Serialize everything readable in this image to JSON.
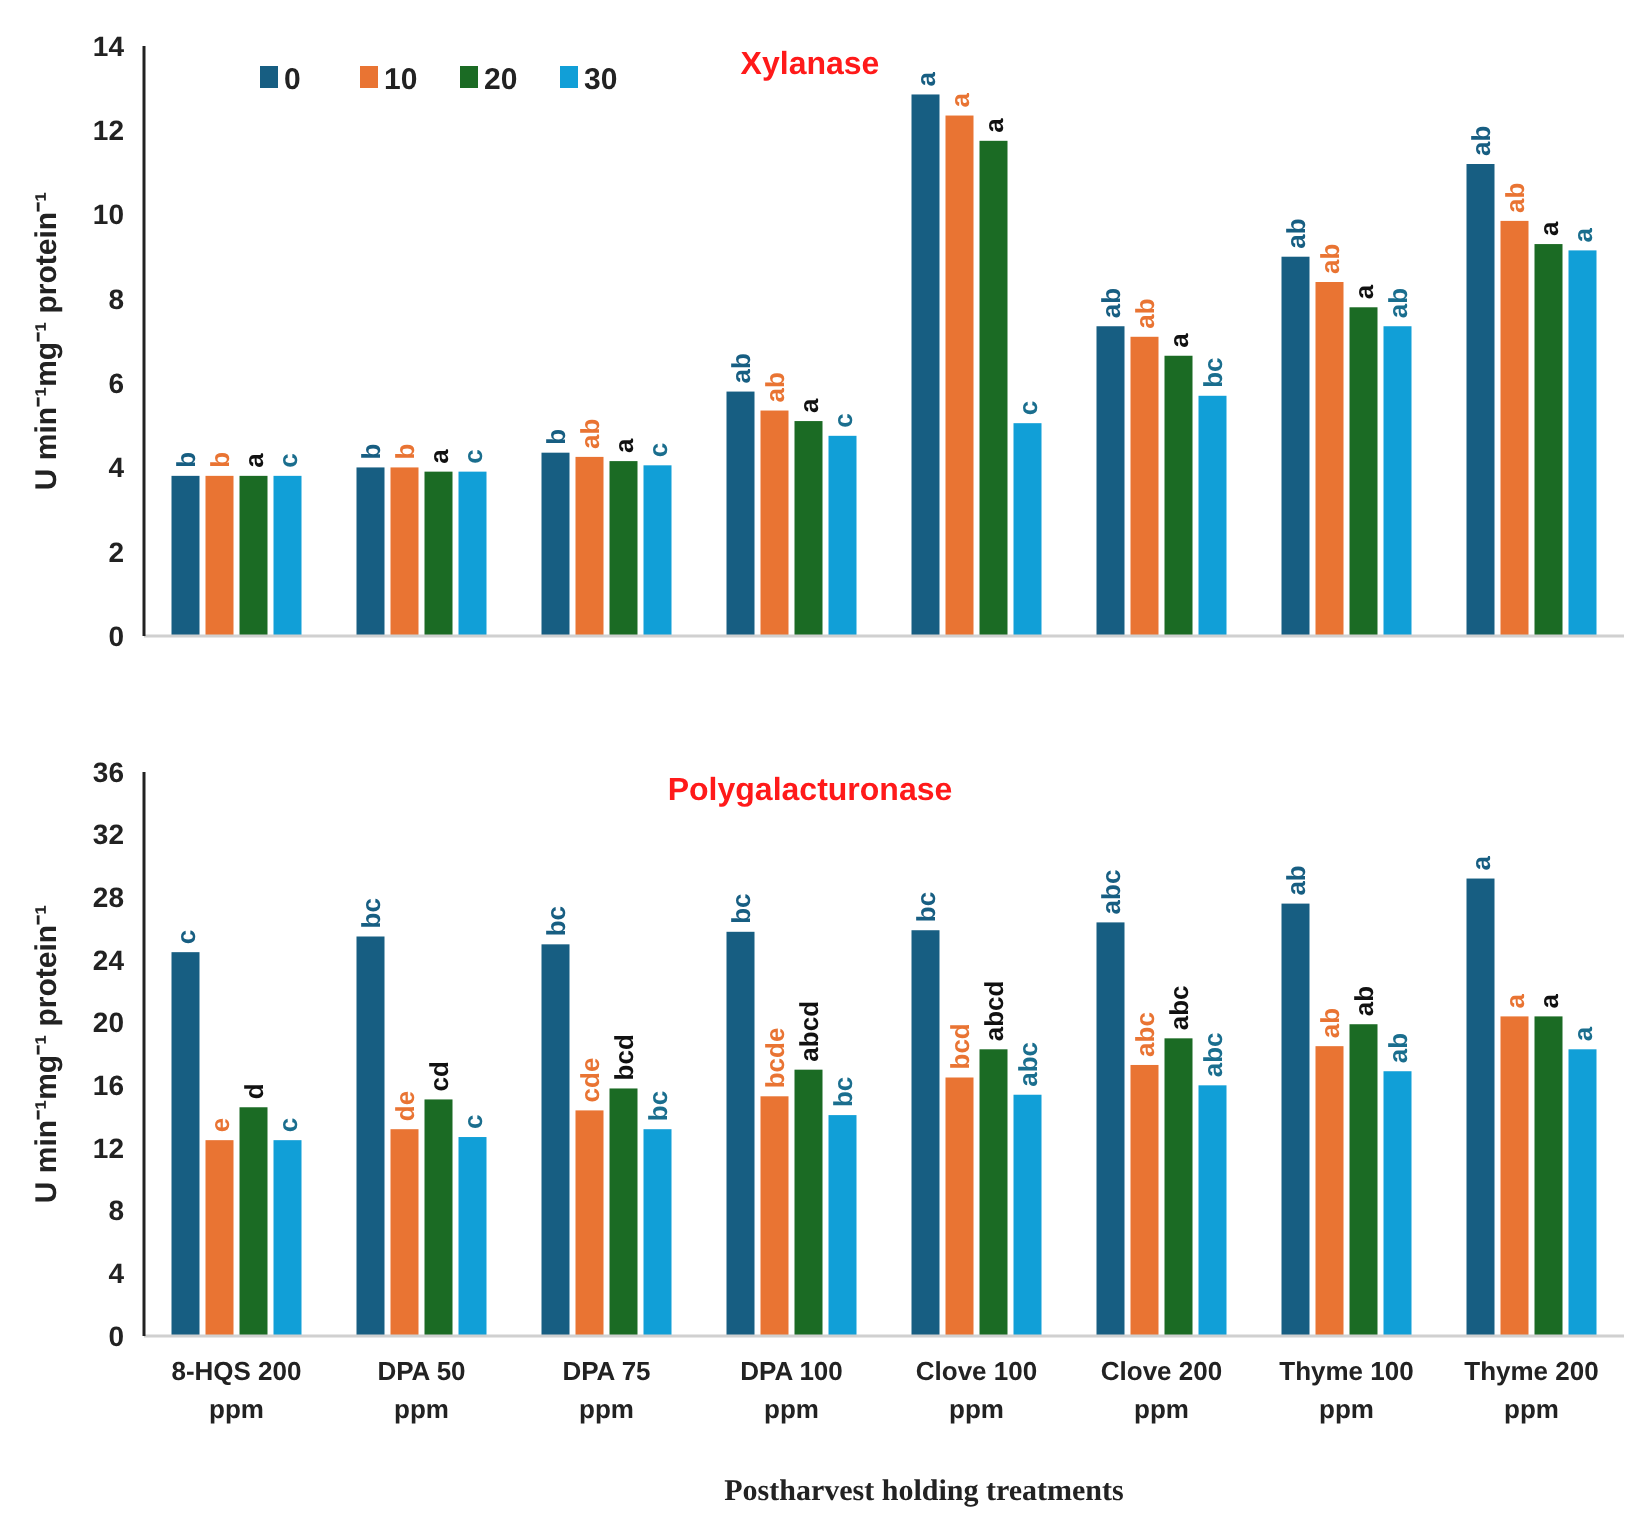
{
  "chart_data": [
    {
      "type": "bar",
      "title": "Xylanase",
      "ylabel": "U min⁻¹mg⁻¹ protein⁻¹",
      "categories": [
        null,
        null,
        null,
        null,
        null,
        null,
        null,
        null
      ],
      "tick_labels": "y",
      "legend": "top left",
      "ylim": [
        0,
        14
      ],
      "yticks": [
        0,
        2,
        4,
        6,
        8,
        10,
        12,
        14
      ],
      "series": [
        {
          "name": "0",
          "color": "#175e82",
          "values": [
            3.8,
            4.0,
            4.35,
            5.8,
            12.85,
            7.35,
            9.0,
            11.2
          ],
          "value_labels": [
            "b",
            "b",
            "b",
            "ab",
            "a",
            "ab",
            "ab",
            "ab"
          ]
        },
        {
          "name": "10",
          "color": "#e97433",
          "values": [
            3.8,
            4.0,
            4.25,
            5.35,
            12.35,
            7.1,
            8.4,
            9.85
          ],
          "value_labels": [
            "b",
            "b",
            "ab",
            "ab",
            "a",
            "ab",
            "ab",
            "ab"
          ]
        },
        {
          "name": "20",
          "color": "#1b6b24",
          "values": [
            3.8,
            3.9,
            4.15,
            5.1,
            11.75,
            6.65,
            7.8,
            9.3
          ],
          "value_labels": [
            "a",
            "a",
            "a",
            "a",
            "a",
            "a",
            "a",
            "a"
          ]
        },
        {
          "name": "30",
          "color": "#119fd7",
          "values": [
            3.8,
            3.9,
            4.05,
            4.75,
            5.05,
            5.7,
            7.35,
            9.15
          ],
          "value_labels": [
            "c",
            "c",
            "c",
            "c",
            "c",
            "bc",
            "ab",
            "a"
          ]
        }
      ]
    },
    {
      "type": "bar",
      "title": "Polygalacturonase",
      "ylabel": "U min⁻¹mg⁻¹ protein⁻¹",
      "xlabel": "Postharvest holding treatments",
      "categories": [
        "8-HQS 200 ppm",
        "DPA 50 ppm",
        "DPA 75 ppm",
        "DPA 100 ppm",
        "Clove 100 ppm",
        "Clove 200 ppm",
        "Thyme 100 ppm",
        "Thyme 200 ppm"
      ],
      "ylim": [
        0,
        36
      ],
      "yticks": [
        0,
        4,
        8,
        12,
        16,
        20,
        24,
        28,
        32,
        36
      ],
      "series": [
        {
          "color": "#175e82",
          "values": [
            24.5,
            25.5,
            25.0,
            25.8,
            25.9,
            26.4,
            27.6,
            29.2
          ],
          "value_labels": [
            "c",
            "bc",
            "bc",
            "bc",
            "bc",
            "abc",
            "ab",
            "a"
          ]
        },
        {
          "color": "#e97433",
          "values": [
            12.5,
            13.2,
            14.4,
            15.3,
            16.5,
            17.3,
            18.5,
            20.4
          ],
          "value_labels": [
            "e",
            "de",
            "cde",
            "bcde",
            "bcd",
            "abc",
            "ab",
            "a"
          ]
        },
        {
          "color": "#1b6b24",
          "values": [
            14.6,
            15.1,
            15.8,
            17.0,
            18.3,
            19.0,
            19.9,
            20.4
          ],
          "value_labels": [
            "d",
            "cd",
            "bcd",
            "abcd",
            "abcd",
            "abc",
            "ab",
            "a"
          ]
        },
        {
          "color": "#119fd7",
          "values": [
            12.5,
            12.7,
            13.2,
            14.1,
            15.4,
            16.0,
            16.9,
            18.3
          ],
          "value_labels": [
            "c",
            "c",
            "bc",
            "bc",
            "abc",
            "abc",
            "ab",
            "a"
          ]
        }
      ]
    }
  ]
}
